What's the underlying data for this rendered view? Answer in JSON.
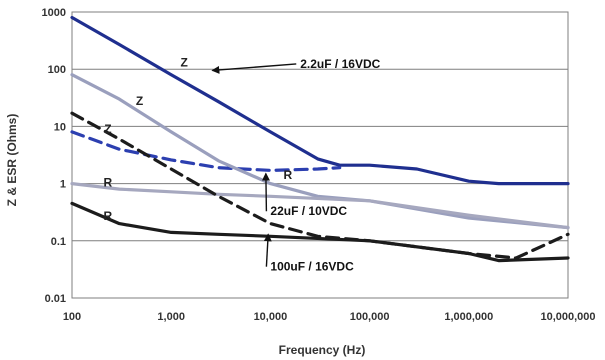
{
  "chart_data": {
    "type": "line",
    "xlabel": "Frequency (Hz)",
    "ylabel": "Z & ESR (Ohms)",
    "x_scale": "log",
    "y_scale": "log",
    "xlim": [
      100,
      10000000
    ],
    "ylim": [
      0.01,
      1000
    ],
    "x_ticks": [
      100,
      1000,
      10000,
      100000,
      1000000,
      10000000
    ],
    "x_tick_labels": [
      "100",
      "1,000",
      "10,000",
      "100,000",
      "1,000,000",
      "10,000,000"
    ],
    "y_ticks": [
      0.01,
      0.1,
      1,
      10,
      100,
      1000
    ],
    "y_tick_labels": [
      "0.01",
      "0.1",
      "1",
      "10",
      "100",
      "1000"
    ],
    "grid": "horizontal",
    "series": [
      {
        "name": "2.2uF / 16VDC",
        "curve_label": "Z",
        "color": "#1f2f8f",
        "style": "solid",
        "points": [
          [
            100,
            800
          ],
          [
            300,
            270
          ],
          [
            1000,
            80
          ],
          [
            3000,
            27
          ],
          [
            10000,
            8
          ],
          [
            30000,
            2.7
          ],
          [
            50000,
            2.1
          ],
          [
            100000,
            2.1
          ],
          [
            300000,
            1.8
          ],
          [
            1000000,
            1.1
          ],
          [
            2000000,
            1.0
          ],
          [
            10000000,
            1.0
          ]
        ]
      },
      {
        "name": "2.2uF / 16VDC",
        "curve_label": "R",
        "color": "#2c3fb0",
        "style": "dashed",
        "points": [
          [
            100,
            8
          ],
          [
            300,
            4
          ],
          [
            1000,
            2.6
          ],
          [
            3000,
            1.9
          ],
          [
            10000,
            1.7
          ],
          [
            30000,
            1.8
          ],
          [
            50000,
            1.9
          ]
        ]
      },
      {
        "name": "22uF / 10VDC",
        "curve_label": "Z",
        "color": "#9a9fbd",
        "style": "solid",
        "points": [
          [
            100,
            80
          ],
          [
            300,
            30
          ],
          [
            1000,
            8
          ],
          [
            3000,
            2.5
          ],
          [
            10000,
            1.0
          ],
          [
            30000,
            0.6
          ],
          [
            100000,
            0.5
          ],
          [
            1000000,
            0.25
          ],
          [
            10000000,
            0.17
          ]
        ]
      },
      {
        "name": "22uF / 10VDC",
        "curve_label": "R",
        "color": "#a6a8bf",
        "style": "solid",
        "points": [
          [
            100,
            1.0
          ],
          [
            300,
            0.8
          ],
          [
            1000,
            0.72
          ],
          [
            3000,
            0.65
          ],
          [
            10000,
            0.6
          ],
          [
            100000,
            0.5
          ],
          [
            1000000,
            0.28
          ],
          [
            10000000,
            0.17
          ]
        ]
      },
      {
        "name": "100uF / 16VDC",
        "curve_label": "Z",
        "color": "#1c1c1c",
        "style": "dashed",
        "points": [
          [
            100,
            17
          ],
          [
            300,
            6
          ],
          [
            1000,
            1.8
          ],
          [
            3000,
            0.6
          ],
          [
            10000,
            0.2
          ],
          [
            30000,
            0.12
          ],
          [
            100000,
            0.1
          ],
          [
            1000000,
            0.06
          ],
          [
            3000000,
            0.05
          ],
          [
            10000000,
            0.13
          ]
        ]
      },
      {
        "name": "100uF / 16VDC",
        "curve_label": "R",
        "color": "#1c1c1c",
        "style": "solid",
        "points": [
          [
            100,
            0.45
          ],
          [
            300,
            0.2
          ],
          [
            1000,
            0.14
          ],
          [
            3000,
            0.13
          ],
          [
            10000,
            0.12
          ],
          [
            100000,
            0.1
          ],
          [
            1000000,
            0.06
          ],
          [
            2000000,
            0.045
          ],
          [
            10000000,
            0.05
          ]
        ]
      }
    ],
    "curve_labels": [
      {
        "text": "Z",
        "x": 1350,
        "y": 130
      },
      {
        "text": "Z",
        "x": 480,
        "y": 28
      },
      {
        "text": "Z",
        "x": 230,
        "y": 9
      },
      {
        "text": "R",
        "x": 15000,
        "y": 1.4
      },
      {
        "text": "R",
        "x": 230,
        "y": 1.05
      },
      {
        "text": "R",
        "x": 230,
        "y": 0.27
      }
    ],
    "annotations": [
      {
        "text": "2.2uF / 16VDC",
        "text_x": 20000,
        "text_y": 105,
        "arrow_to_x": 2600,
        "arrow_to_y": 95
      },
      {
        "text": "22uF / 10VDC",
        "text_x": 10000,
        "text_y": 0.28,
        "arrow_to_x": 9000,
        "arrow_to_y": 1.5
      },
      {
        "text": "100uF / 16VDC",
        "text_x": 10000,
        "text_y": 0.03,
        "arrow_to_x": 9500,
        "arrow_to_y": 0.13
      }
    ]
  }
}
